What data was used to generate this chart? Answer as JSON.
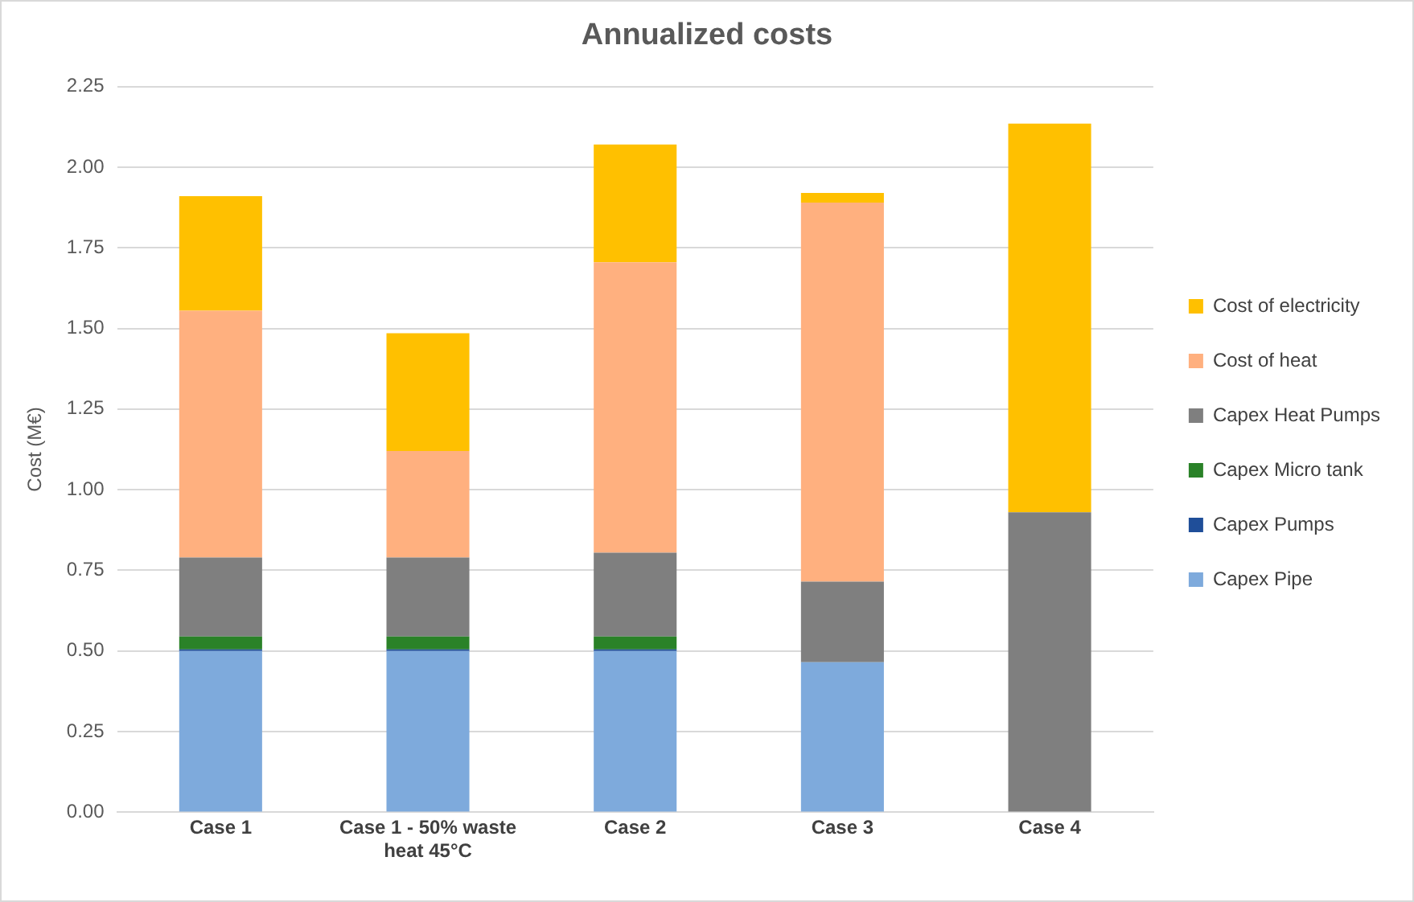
{
  "chart_data": {
    "type": "bar",
    "title": "Annualized costs",
    "ylabel": "Cost (M€)",
    "stacked": true,
    "legend": "right",
    "grid": "y",
    "categories": [
      "Case 1",
      "Case 1 - 50% waste heat 45°C",
      "Case 2",
      "Case 3",
      "Case 4"
    ],
    "ylim": [
      0,
      2.25
    ],
    "yticks": [
      {
        "value": 0,
        "label": "0.00"
      },
      {
        "value": 0.25,
        "label": "0.25"
      },
      {
        "value": 0.5,
        "label": "0.50"
      },
      {
        "value": 0.75,
        "label": "0.75"
      },
      {
        "value": 1,
        "label": "1.00"
      },
      {
        "value": 1.25,
        "label": "1.25"
      },
      {
        "value": 1.5,
        "label": "1.50"
      },
      {
        "value": 1.75,
        "label": "1.75"
      },
      {
        "value": 2,
        "label": "2.00"
      },
      {
        "value": 2.25,
        "label": "2.25"
      }
    ],
    "series": [
      {
        "name": "Capex Pipe",
        "color": "#7eaadc",
        "values": [
          0.5,
          0.5,
          0.5,
          0.465,
          0
        ]
      },
      {
        "name": "Capex Pumps",
        "color": "#1f4e99",
        "values": [
          0.005,
          0.005,
          0.005,
          0,
          0
        ]
      },
      {
        "name": "Capex Micro tank",
        "color": "#2a8228",
        "values": [
          0.04,
          0.04,
          0.04,
          0,
          0
        ]
      },
      {
        "name": "Capex Heat Pumps",
        "color": "#7f7f7f",
        "values": [
          0.245,
          0.245,
          0.26,
          0.25,
          0.93
        ]
      },
      {
        "name": "Cost of heat",
        "color": "#ffb07f",
        "values": [
          0.765,
          0.33,
          0.9,
          1.175,
          0
        ]
      },
      {
        "name": "Cost of electricity",
        "color": "#ffc000",
        "values": [
          0.355,
          0.365,
          0.365,
          0.03,
          1.205
        ]
      }
    ]
  }
}
